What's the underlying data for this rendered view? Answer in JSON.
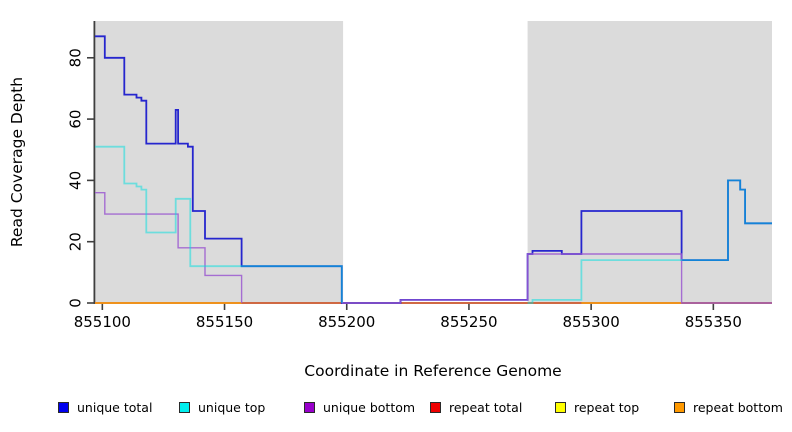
{
  "chart_data": {
    "type": "line",
    "line_style": "step-after",
    "title": "",
    "xlabel": "Coordinate in Reference Genome",
    "ylabel": "Read Coverage Depth",
    "xlim": [
      855097,
      855374
    ],
    "ylim": [
      0,
      92
    ],
    "grid": false,
    "x_ticks": [
      855100,
      855150,
      855200,
      855250,
      855300,
      855350
    ],
    "y_ticks": [
      0,
      20,
      40,
      60,
      80
    ],
    "background_bands": [
      {
        "x0": 855097,
        "x1": 855198.5,
        "color": "#DBDBDB"
      },
      {
        "x0": 855274,
        "x1": 855374,
        "color": "#DBDBDB"
      }
    ],
    "series": [
      {
        "name": "repeat top",
        "line_color": "#E8E800",
        "opacity": 1,
        "width": 1.4,
        "segments": [
          [
            [
              855097,
              0
            ],
            [
              855374,
              0
            ]
          ]
        ]
      },
      {
        "name": "repeat total",
        "line_color": "#DD3355",
        "opacity": 0.8,
        "width": 1.4,
        "segments": [
          [
            [
              855097,
              0
            ],
            [
              855374,
              0
            ]
          ]
        ]
      },
      {
        "name": "repeat bottom",
        "line_color": "#FF9911",
        "opacity": 1,
        "width": 1.6,
        "segments": [
          [
            [
              855097,
              0
            ],
            [
              855157,
              0
            ]
          ],
          [
            [
              855296,
              0
            ],
            [
              855337,
              0
            ]
          ]
        ]
      },
      {
        "name": "unique total",
        "line_color": "#2626CE",
        "opacity": 1,
        "width": 1.8,
        "segments": [
          [
            [
              855097,
              87
            ],
            [
              855101,
              80
            ],
            [
              855109,
              68
            ],
            [
              855114,
              67
            ],
            [
              855116,
              66
            ],
            [
              855118,
              52
            ],
            [
              855130,
              63
            ],
            [
              855131,
              52
            ],
            [
              855135,
              51
            ],
            [
              855137,
              30
            ],
            [
              855142,
              21
            ],
            [
              855157,
              12
            ],
            [
              855198,
              0
            ],
            [
              855222,
              1
            ],
            [
              855274,
              16
            ],
            [
              855276,
              17
            ],
            [
              855288,
              16
            ],
            [
              855296,
              30
            ],
            [
              855337,
              14
            ],
            [
              855356,
              40
            ],
            [
              855361,
              37
            ],
            [
              855363,
              26
            ],
            [
              855374,
              26
            ]
          ]
        ]
      },
      {
        "name": "unique bottom",
        "line_color": "#9B59D0",
        "opacity": 0.85,
        "width": 1.4,
        "segments": [
          [
            [
              855097,
              36
            ],
            [
              855101,
              29
            ],
            [
              855131,
              18
            ],
            [
              855142,
              9
            ],
            [
              855157,
              0
            ]
          ],
          [
            [
              855198,
              0
            ],
            [
              855222,
              1
            ],
            [
              855274,
              16
            ],
            [
              855337,
              0
            ],
            [
              855374,
              0
            ]
          ]
        ]
      },
      {
        "name": "unique top",
        "line_color": "#00E0E0",
        "opacity": 0.5,
        "width": 1.8,
        "segments": [
          [
            [
              855097,
              51
            ],
            [
              855109,
              39
            ],
            [
              855114,
              38
            ],
            [
              855116,
              37
            ],
            [
              855118,
              23
            ],
            [
              855130,
              34
            ],
            [
              855136,
              12
            ],
            [
              855198,
              0
            ]
          ],
          [
            [
              855274,
              0
            ],
            [
              855276,
              1
            ],
            [
              855296,
              14
            ],
            [
              855356,
              40
            ],
            [
              855361,
              37
            ],
            [
              855363,
              26
            ],
            [
              855374,
              26
            ]
          ]
        ]
      }
    ]
  },
  "axes_style": {
    "axis_color": "#3F3F3F",
    "tick_color": "#3F3F3F"
  },
  "legend": {
    "items": [
      {
        "label": "unique total",
        "color": "#0000EE"
      },
      {
        "label": "unique top",
        "color": "#00EEEE"
      },
      {
        "label": "unique bottom",
        "color": "#9900CC"
      },
      {
        "label": "repeat total",
        "color": "#EE0000"
      },
      {
        "label": "repeat top",
        "color": "#FFFF00"
      },
      {
        "label": "repeat bottom",
        "color": "#FF9900"
      }
    ]
  }
}
